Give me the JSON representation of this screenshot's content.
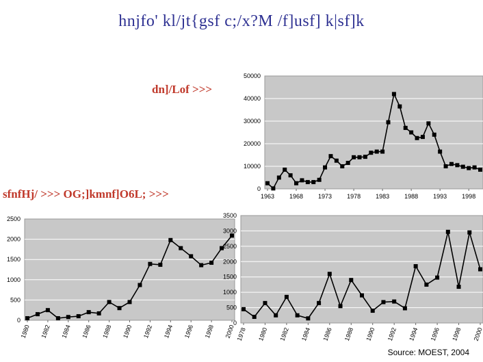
{
  "page": {
    "title": "hnjfo' kl/jt{gsf c;/x?M /f]usf] k|sf]k",
    "label_top": "dn]/Lof >>>",
    "label_bottom": "sfnfHj/ >>>   OG;]kmnf]O6L; >>>",
    "source": "Source: MOEST, 2004"
  },
  "chart_data": [
    {
      "type": "line",
      "x": [
        1963,
        1964,
        1965,
        1966,
        1967,
        1968,
        1969,
        1970,
        1971,
        1972,
        1973,
        1974,
        1975,
        1976,
        1977,
        1978,
        1979,
        1980,
        1981,
        1982,
        1983,
        1984,
        1985,
        1986,
        1987,
        1988,
        1989,
        1990,
        1991,
        1992,
        1993,
        1994,
        1995,
        1996,
        1997,
        1998,
        1999,
        2000
      ],
      "series": [
        {
          "values": [
            2500,
            200,
            5000,
            8500,
            6000,
            2500,
            3800,
            3000,
            3000,
            4000,
            9500,
            14500,
            12500,
            10000,
            11500,
            14000,
            14000,
            14200,
            16000,
            16500,
            16500,
            29500,
            42000,
            36500,
            27000,
            25000,
            22500,
            23000,
            29000,
            24000,
            16500,
            10000,
            11000,
            10500,
            9800,
            9200,
            9500,
            8500
          ]
        }
      ],
      "ylim": [
        0,
        50000
      ],
      "yticks": [
        0,
        10000,
        20000,
        30000,
        40000,
        50000
      ],
      "xticks": [
        1963,
        1968,
        1973,
        1978,
        1983,
        1988,
        1993,
        1998
      ],
      "grid": true
    },
    {
      "type": "line",
      "x": [
        1980,
        1981,
        1982,
        1983,
        1984,
        1985,
        1986,
        1987,
        1988,
        1989,
        1990,
        1991,
        1992,
        1993,
        1994,
        1995,
        1996,
        1997,
        1998,
        1999,
        2000
      ],
      "series": [
        {
          "values": [
            50,
            150,
            250,
            50,
            80,
            100,
            200,
            170,
            450,
            300,
            450,
            870,
            1390,
            1370,
            1980,
            1780,
            1580,
            1360,
            1420,
            1780,
            2090
          ]
        }
      ],
      "ylim": [
        0,
        2500
      ],
      "yticks": [
        0,
        500,
        1000,
        1500,
        2000,
        2500
      ],
      "xticks": [
        1980,
        1982,
        1984,
        1986,
        1988,
        1990,
        1992,
        1994,
        1996,
        1998,
        2000
      ],
      "grid": true
    },
    {
      "type": "line",
      "x": [
        1978,
        1979,
        1980,
        1981,
        1982,
        1983,
        1984,
        1985,
        1986,
        1987,
        1988,
        1989,
        1990,
        1991,
        1992,
        1993,
        1994,
        1995,
        1996,
        1997,
        1998,
        1999,
        2000
      ],
      "series": [
        {
          "values": [
            450,
            200,
            650,
            250,
            850,
            250,
            150,
            650,
            1600,
            550,
            1400,
            900,
            400,
            680,
            700,
            480,
            1850,
            1250,
            1480,
            2970,
            1180,
            2950,
            1750
          ]
        }
      ],
      "ylim": [
        0,
        3500
      ],
      "yticks": [
        0,
        500,
        1000,
        1500,
        2000,
        2500,
        3000,
        3500
      ],
      "xticks": [
        1978,
        1980,
        1982,
        1984,
        1986,
        1988,
        1990,
        1992,
        1994,
        1996,
        1998,
        2000
      ],
      "grid": true
    }
  ]
}
